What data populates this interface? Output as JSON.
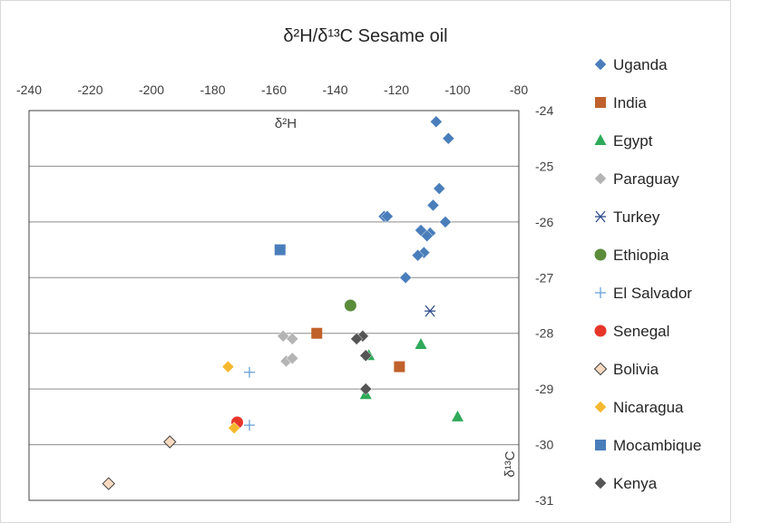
{
  "chart_data": {
    "type": "scatter",
    "title": "δ²H/δ¹³C Sesame oil",
    "xlabel": "δ²H",
    "ylabel": "δ¹³C",
    "xlim": [
      -240,
      -80
    ],
    "ylim": [
      -31,
      -24
    ],
    "x_ticks": [
      -240,
      -220,
      -200,
      -180,
      -160,
      -140,
      -120,
      -100,
      -80
    ],
    "y_ticks": [
      -24,
      -25,
      -26,
      -27,
      -28,
      -29,
      -30,
      -31
    ],
    "x_axis_position": "top",
    "y_axis_position": "right",
    "grid": "horizontal",
    "legend_position": "right",
    "series": [
      {
        "name": "Uganda",
        "marker": "diamond",
        "color": "#4a7ebb",
        "points": [
          [
            -107,
            -24.2
          ],
          [
            -103,
            -24.5
          ],
          [
            -106,
            -25.4
          ],
          [
            -108,
            -25.7
          ],
          [
            -104,
            -26.0
          ],
          [
            -124,
            -25.9
          ],
          [
            -123,
            -25.9
          ],
          [
            -112,
            -26.15
          ],
          [
            -109,
            -26.2
          ],
          [
            -110,
            -26.25
          ],
          [
            -111,
            -26.55
          ],
          [
            -113,
            -26.6
          ],
          [
            -117,
            -27.0
          ]
        ]
      },
      {
        "name": "India",
        "marker": "square",
        "color": "#c0612b",
        "points": [
          [
            -146,
            -28.0
          ],
          [
            -119,
            -28.6
          ]
        ]
      },
      {
        "name": "Egypt",
        "marker": "triangle",
        "color": "#2eaa5a",
        "points": [
          [
            -112,
            -28.2
          ],
          [
            -129,
            -28.4
          ],
          [
            -130,
            -29.1
          ],
          [
            -100,
            -29.5
          ]
        ]
      },
      {
        "name": "Paraguay",
        "marker": "diamond",
        "color": "#b4b4b4",
        "points": [
          [
            -157,
            -28.05
          ],
          [
            -154,
            -28.1
          ],
          [
            -156,
            -28.5
          ],
          [
            -154,
            -28.45
          ]
        ]
      },
      {
        "name": "Turkey",
        "marker": "asterisk",
        "color": "#2e4c8c",
        "points": [
          [
            -109,
            -27.6
          ]
        ]
      },
      {
        "name": "Ethiopia",
        "marker": "circle",
        "color": "#5b8c3a",
        "points": [
          [
            -135,
            -27.5
          ]
        ]
      },
      {
        "name": "El Salvador",
        "marker": "plus",
        "color": "#6aa2d8",
        "points": [
          [
            -168,
            -28.7
          ],
          [
            -168,
            -29.65
          ]
        ]
      },
      {
        "name": "Senegal",
        "marker": "circle",
        "color": "#e8352a",
        "points": [
          [
            -172,
            -29.6
          ]
        ]
      },
      {
        "name": "Bolivia",
        "marker": "diamond-open",
        "color": "#f7d9bf",
        "points": [
          [
            -194,
            -29.95
          ],
          [
            -214,
            -30.7
          ]
        ]
      },
      {
        "name": "Nicaragua",
        "marker": "diamond",
        "color": "#f5b82e",
        "points": [
          [
            -175,
            -28.6
          ],
          [
            -173,
            -29.7
          ]
        ]
      },
      {
        "name": "Mocambique",
        "marker": "square",
        "color": "#4a7ebb",
        "points": [
          [
            -158,
            -26.5
          ]
        ]
      },
      {
        "name": "Kenya",
        "marker": "diamond",
        "color": "#555555",
        "points": [
          [
            -131,
            -28.05
          ],
          [
            -133,
            -28.1
          ],
          [
            -130,
            -28.4
          ],
          [
            -130,
            -29.0
          ]
        ]
      }
    ]
  }
}
